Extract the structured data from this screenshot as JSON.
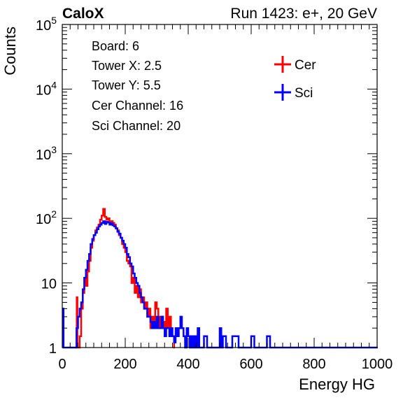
{
  "header": {
    "left": "CaloX",
    "right": "Run 1423: e+, 20 GeV"
  },
  "infobox": {
    "lines": [
      "Board: 6",
      "Tower X: 2.5",
      "Tower Y: 5.5",
      "Cer Channel: 16",
      "Sci Channel: 20"
    ]
  },
  "chart_data": {
    "type": "line",
    "xlabel": "Energy HG",
    "ylabel": "Counts",
    "xlim": [
      0,
      1000
    ],
    "ylim": [
      1,
      100000
    ],
    "yscale": "log",
    "x_ticks": [
      {
        "value": 0,
        "label": "0"
      },
      {
        "value": 200,
        "label": "200"
      },
      {
        "value": 400,
        "label": "400"
      },
      {
        "value": 600,
        "label": "600"
      },
      {
        "value": 800,
        "label": "800"
      },
      {
        "value": 1000,
        "label": "1000"
      }
    ],
    "y_ticks": [
      {
        "value": 1,
        "base": "1",
        "exp": ""
      },
      {
        "value": 10,
        "base": "10",
        "exp": ""
      },
      {
        "value": 100,
        "base": "10",
        "exp": "2"
      },
      {
        "value": 1000,
        "base": "10",
        "exp": "3"
      },
      {
        "value": 10000,
        "base": "10",
        "exp": "4"
      },
      {
        "value": 100000,
        "base": "10",
        "exp": "5"
      }
    ],
    "legend_position": "top-right",
    "series": [
      {
        "name": "Cer",
        "color": "#ff0000",
        "points": [
          [
            44,
            1
          ],
          [
            46,
            6
          ],
          [
            48,
            1
          ],
          [
            50,
            1
          ],
          [
            55,
            1.5
          ],
          [
            60,
            4
          ],
          [
            65,
            7
          ],
          [
            70,
            12
          ],
          [
            75,
            9
          ],
          [
            80,
            15
          ],
          [
            85,
            22
          ],
          [
            90,
            35
          ],
          [
            95,
            45
          ],
          [
            100,
            55
          ],
          [
            105,
            65
          ],
          [
            110,
            72
          ],
          [
            115,
            80
          ],
          [
            120,
            95
          ],
          [
            125,
            110
          ],
          [
            130,
            140
          ],
          [
            135,
            105
          ],
          [
            140,
            95
          ],
          [
            145,
            100
          ],
          [
            150,
            88
          ],
          [
            155,
            90
          ],
          [
            160,
            85
          ],
          [
            165,
            80
          ],
          [
            170,
            70
          ],
          [
            175,
            65
          ],
          [
            180,
            55
          ],
          [
            185,
            50
          ],
          [
            190,
            40
          ],
          [
            195,
            35
          ],
          [
            200,
            30
          ],
          [
            205,
            22
          ],
          [
            210,
            20
          ],
          [
            215,
            18
          ],
          [
            220,
            10
          ],
          [
            225,
            12
          ],
          [
            230,
            7
          ],
          [
            235,
            9
          ],
          [
            240,
            6
          ],
          [
            245,
            8
          ],
          [
            250,
            5
          ],
          [
            255,
            6
          ],
          [
            260,
            4
          ],
          [
            265,
            5
          ],
          [
            270,
            3
          ],
          [
            275,
            4
          ],
          [
            280,
            2
          ],
          [
            285,
            3
          ],
          [
            290,
            2
          ],
          [
            295,
            5
          ],
          [
            300,
            4
          ],
          [
            305,
            3
          ],
          [
            310,
            2
          ],
          [
            315,
            3
          ],
          [
            320,
            2.5
          ],
          [
            325,
            2
          ],
          [
            330,
            4
          ],
          [
            335,
            2
          ],
          [
            340,
            3
          ],
          [
            345,
            1.5
          ],
          [
            350,
            1.5
          ],
          [
            355,
            1
          ]
        ]
      },
      {
        "name": "Sci",
        "color": "#0000ff",
        "points": [
          [
            0,
            4
          ],
          [
            4,
            1
          ],
          [
            8,
            1
          ],
          [
            12,
            1
          ],
          [
            20,
            1
          ],
          [
            30,
            1
          ],
          [
            40,
            1
          ],
          [
            45,
            2
          ],
          [
            50,
            3
          ],
          [
            55,
            4
          ],
          [
            60,
            5
          ],
          [
            65,
            8
          ],
          [
            70,
            12
          ],
          [
            75,
            16
          ],
          [
            80,
            22
          ],
          [
            85,
            28
          ],
          [
            90,
            40
          ],
          [
            95,
            48
          ],
          [
            100,
            55
          ],
          [
            105,
            60
          ],
          [
            110,
            68
          ],
          [
            115,
            75
          ],
          [
            120,
            80
          ],
          [
            125,
            85
          ],
          [
            130,
            90
          ],
          [
            135,
            82
          ],
          [
            140,
            88
          ],
          [
            145,
            86
          ],
          [
            150,
            80
          ],
          [
            155,
            84
          ],
          [
            160,
            78
          ],
          [
            165,
            75
          ],
          [
            170,
            70
          ],
          [
            175,
            62
          ],
          [
            180,
            58
          ],
          [
            185,
            50
          ],
          [
            190,
            45
          ],
          [
            195,
            40
          ],
          [
            200,
            35
          ],
          [
            205,
            28
          ],
          [
            210,
            25
          ],
          [
            215,
            20
          ],
          [
            220,
            18
          ],
          [
            225,
            14
          ],
          [
            230,
            12
          ],
          [
            235,
            10
          ],
          [
            240,
            9
          ],
          [
            245,
            7
          ],
          [
            250,
            6
          ],
          [
            255,
            5
          ],
          [
            260,
            4
          ],
          [
            265,
            4
          ],
          [
            270,
            3
          ],
          [
            275,
            3
          ],
          [
            280,
            2.5
          ],
          [
            285,
            2
          ],
          [
            290,
            2.5
          ],
          [
            295,
            2
          ],
          [
            300,
            3
          ],
          [
            305,
            2
          ],
          [
            310,
            2
          ],
          [
            315,
            3
          ],
          [
            320,
            2
          ],
          [
            325,
            1.5
          ],
          [
            330,
            2
          ],
          [
            335,
            2
          ],
          [
            340,
            1.5
          ],
          [
            345,
            2
          ],
          [
            350,
            1.5
          ],
          [
            355,
            1.2
          ],
          [
            360,
            2
          ],
          [
            365,
            1.5
          ],
          [
            370,
            2
          ],
          [
            375,
            3
          ],
          [
            380,
            2
          ],
          [
            385,
            1.5
          ],
          [
            390,
            1
          ],
          [
            395,
            2
          ],
          [
            400,
            1.5
          ],
          [
            405,
            1
          ],
          [
            410,
            1.5
          ],
          [
            415,
            1
          ],
          [
            420,
            1.5
          ],
          [
            425,
            1
          ],
          [
            430,
            2
          ],
          [
            435,
            1
          ],
          [
            440,
            1
          ],
          [
            450,
            1.5
          ],
          [
            460,
            1
          ],
          [
            480,
            1
          ],
          [
            500,
            2
          ],
          [
            505,
            1
          ],
          [
            510,
            1.5
          ],
          [
            520,
            1
          ],
          [
            540,
            1.5
          ],
          [
            560,
            1
          ],
          [
            580,
            1
          ],
          [
            600,
            1.5
          ],
          [
            610,
            1
          ],
          [
            630,
            1
          ],
          [
            650,
            1.5
          ],
          [
            660,
            1
          ],
          [
            700,
            1
          ],
          [
            800,
            1
          ],
          [
            900,
            1
          ],
          [
            1000,
            1
          ]
        ]
      }
    ]
  }
}
